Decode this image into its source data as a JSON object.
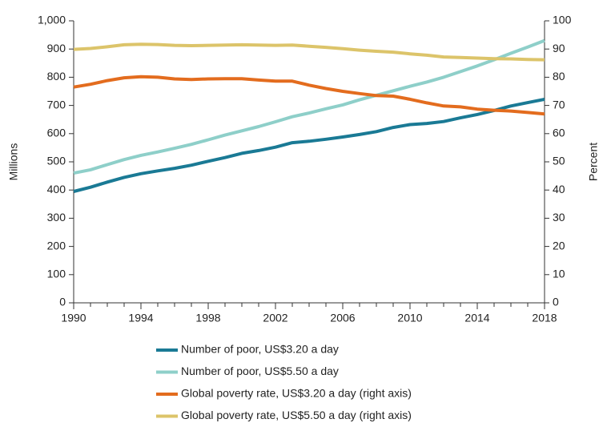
{
  "chart_data": {
    "type": "line",
    "y_label": "Millions",
    "y2_label": "Percent",
    "x": [
      1990,
      1991,
      1992,
      1993,
      1994,
      1995,
      1996,
      1997,
      1998,
      1999,
      2000,
      2001,
      2002,
      2003,
      2004,
      2005,
      2006,
      2007,
      2008,
      2009,
      2010,
      2011,
      2012,
      2013,
      2014,
      2015,
      2016,
      2017,
      2018
    ],
    "xlim": [
      1990,
      2018
    ],
    "xticks": [
      1990,
      1994,
      1998,
      2002,
      2006,
      2010,
      2014,
      2018
    ],
    "ylim": [
      0,
      1000
    ],
    "yticks": [
      0,
      100,
      200,
      300,
      400,
      500,
      600,
      700,
      800,
      900,
      {
        "value": 1000,
        "label": "1,000"
      }
    ],
    "y2lim": [
      0,
      100
    ],
    "y2ticks": [
      0,
      10,
      20,
      30,
      40,
      50,
      60,
      70,
      80,
      90,
      100
    ],
    "series": [
      {
        "name": "Number of poor, US$3.20 a day",
        "color": "#1a7a95",
        "values": [
          395,
          410,
          428,
          445,
          458,
          468,
          477,
          488,
          502,
          515,
          530,
          540,
          552,
          568,
          573,
          580,
          588,
          597,
          607,
          622,
          632,
          636,
          643,
          656,
          668,
          682,
          698,
          710,
          722
        ]
      },
      {
        "name": "Number of poor, US$5.50 a day",
        "color": "#8ecfc9",
        "values": [
          460,
          472,
          490,
          508,
          523,
          535,
          548,
          562,
          578,
          595,
          610,
          625,
          642,
          660,
          673,
          688,
          702,
          720,
          736,
          752,
          768,
          783,
          800,
          820,
          840,
          862,
          885,
          907,
          930
        ]
      },
      {
        "name": "Global poverty rate, US$3.20 a day (right axis)",
        "color": "#e36c1e",
        "axis": "y2",
        "values": [
          76.5,
          77.5,
          78.8,
          79.8,
          80.2,
          80.0,
          79.4,
          79.2,
          79.4,
          79.5,
          79.5,
          79.0,
          78.6,
          78.6,
          77.2,
          76.0,
          75.0,
          74.2,
          73.5,
          73.3,
          72.2,
          70.9,
          69.8,
          69.5,
          68.7,
          68.3,
          68.0,
          67.5,
          67.0
        ]
      },
      {
        "name": "Global poverty rate, US$5.50 a day (right axis)",
        "color": "#dcc46a",
        "axis": "y2",
        "values": [
          89.9,
          90.2,
          90.8,
          91.5,
          91.7,
          91.6,
          91.3,
          91.2,
          91.3,
          91.4,
          91.5,
          91.4,
          91.3,
          91.4,
          91.0,
          90.6,
          90.1,
          89.6,
          89.2,
          88.9,
          88.3,
          87.8,
          87.2,
          87.0,
          86.8,
          86.6,
          86.5,
          86.3,
          86.2
        ]
      }
    ]
  }
}
